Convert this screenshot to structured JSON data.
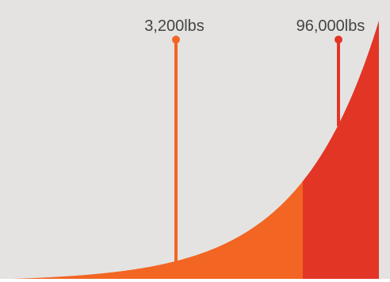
{
  "chart_data": {
    "type": "area",
    "title": "",
    "xlabel": "",
    "ylabel": "",
    "curve": "exponential",
    "regions": [
      {
        "fill": "#f26522"
      },
      {
        "fill": "#e33526"
      }
    ],
    "annotations": [
      {
        "label": "3,200lbs",
        "color": "#f26522"
      },
      {
        "label": "96,000lbs",
        "color": "#e33526"
      }
    ]
  },
  "colors": {
    "background": "#e4e3e2",
    "text": "#444444"
  }
}
